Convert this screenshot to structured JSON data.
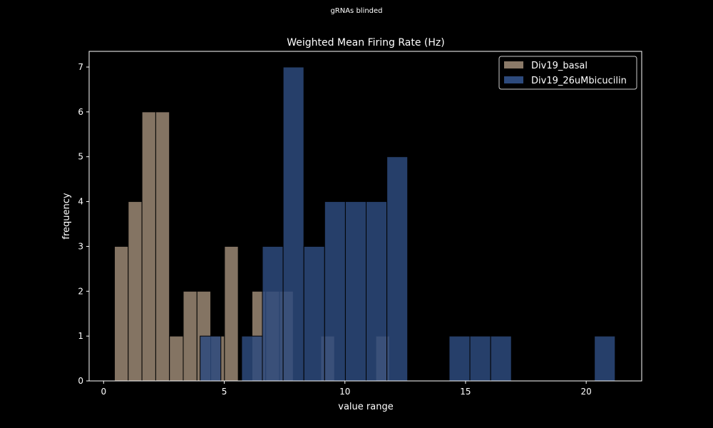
{
  "suptitle": "gRNAs blinded",
  "colors": {
    "background": "#000000",
    "axes": "#ffffff",
    "basal": "#8b7a68",
    "bicucilin": "#2d4a7c"
  },
  "chart_data": {
    "type": "bar",
    "title": "Weighted Mean Firing Rate (Hz)",
    "xlabel": "value range",
    "ylabel": "frequency",
    "xlim": [
      -0.6,
      22.3
    ],
    "ylim": [
      0,
      7.35
    ],
    "xticks": [
      0,
      5,
      10,
      15,
      20
    ],
    "yticks": [
      0,
      1,
      2,
      3,
      4,
      5,
      6,
      7
    ],
    "grid": false,
    "legend_position": "top-right",
    "series": [
      {
        "name": "Div19_basal",
        "color": "#8b7a68",
        "bins": [
          {
            "x0": 0.45,
            "x1": 1.02,
            "count": 3
          },
          {
            "x0": 1.02,
            "x1": 1.59,
            "count": 4
          },
          {
            "x0": 1.59,
            "x1": 2.16,
            "count": 6
          },
          {
            "x0": 2.16,
            "x1": 2.73,
            "count": 6
          },
          {
            "x0": 2.73,
            "x1": 3.3,
            "count": 1
          },
          {
            "x0": 3.3,
            "x1": 3.87,
            "count": 2
          },
          {
            "x0": 3.87,
            "x1": 4.44,
            "count": 2
          },
          {
            "x0": 4.44,
            "x1": 5.01,
            "count": 1
          },
          {
            "x0": 5.01,
            "x1": 5.58,
            "count": 3
          },
          {
            "x0": 6.15,
            "x1": 6.72,
            "count": 2
          },
          {
            "x0": 6.72,
            "x1": 7.29,
            "count": 2
          },
          {
            "x0": 7.29,
            "x1": 7.86,
            "count": 2
          },
          {
            "x0": 9.0,
            "x1": 9.57,
            "count": 1
          },
          {
            "x0": 11.28,
            "x1": 11.85,
            "count": 1
          }
        ]
      },
      {
        "name": "Div19_26uMbicucilin",
        "color": "#2d4a7c",
        "bins": [
          {
            "x0": 4.0,
            "x1": 4.86,
            "count": 1
          },
          {
            "x0": 5.72,
            "x1": 6.58,
            "count": 1
          },
          {
            "x0": 6.58,
            "x1": 7.44,
            "count": 3
          },
          {
            "x0": 7.44,
            "x1": 8.3,
            "count": 7
          },
          {
            "x0": 8.3,
            "x1": 9.16,
            "count": 3
          },
          {
            "x0": 9.16,
            "x1": 10.02,
            "count": 4
          },
          {
            "x0": 10.02,
            "x1": 10.88,
            "count": 4
          },
          {
            "x0": 10.88,
            "x1": 11.74,
            "count": 4
          },
          {
            "x0": 11.74,
            "x1": 12.6,
            "count": 5
          },
          {
            "x0": 14.32,
            "x1": 15.18,
            "count": 1
          },
          {
            "x0": 15.18,
            "x1": 16.04,
            "count": 1
          },
          {
            "x0": 16.04,
            "x1": 16.9,
            "count": 1
          },
          {
            "x0": 20.34,
            "x1": 21.2,
            "count": 1
          }
        ]
      }
    ]
  }
}
